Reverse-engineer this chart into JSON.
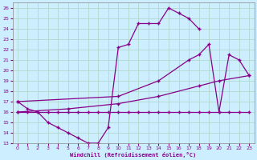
{
  "xlabel": "Windchill (Refroidissement éolien,°C)",
  "bg_color": "#cceeff",
  "line_color": "#880088",
  "grid_color": "#aaddcc",
  "xlim": [
    -0.5,
    23.5
  ],
  "ylim": [
    13,
    26.5
  ],
  "xticks": [
    0,
    1,
    2,
    3,
    4,
    5,
    6,
    7,
    8,
    9,
    10,
    11,
    12,
    13,
    14,
    15,
    16,
    17,
    18,
    19,
    20,
    21,
    22,
    23
  ],
  "yticks": [
    13,
    14,
    15,
    16,
    17,
    18,
    19,
    20,
    21,
    22,
    23,
    24,
    25,
    26
  ],
  "line1_x": [
    0,
    1,
    2,
    3,
    4,
    5,
    6,
    7,
    8,
    9,
    10,
    11,
    12,
    13,
    14,
    15,
    16,
    17,
    18
  ],
  "line1_y": [
    17,
    16.3,
    16,
    15,
    14.5,
    14,
    13.5,
    13,
    13,
    14.5,
    22.2,
    22.5,
    24.5,
    24.5,
    24.5,
    26,
    25.5,
    25,
    24
  ],
  "line2_x": [
    0,
    1,
    2,
    3,
    4,
    5,
    6,
    7,
    8,
    9,
    10,
    11,
    12,
    13,
    14,
    15,
    16,
    17,
    18,
    19,
    20,
    21,
    22,
    23
  ],
  "line2_y": [
    16,
    16,
    16,
    16,
    16,
    16,
    16,
    16,
    16,
    16,
    16,
    16,
    16,
    16,
    16,
    16,
    16,
    16,
    16,
    16,
    16,
    16,
    16,
    16
  ],
  "line3_x": [
    0,
    10,
    14,
    17,
    18,
    19,
    20,
    21,
    22,
    23
  ],
  "line3_y": [
    17,
    17.5,
    19,
    21,
    21.5,
    22.5,
    16,
    21.5,
    21,
    19.5
  ],
  "line4_x": [
    0,
    5,
    10,
    14,
    18,
    20,
    23
  ],
  "line4_y": [
    16,
    16.3,
    16.8,
    17.5,
    18.5,
    19,
    19.5
  ]
}
